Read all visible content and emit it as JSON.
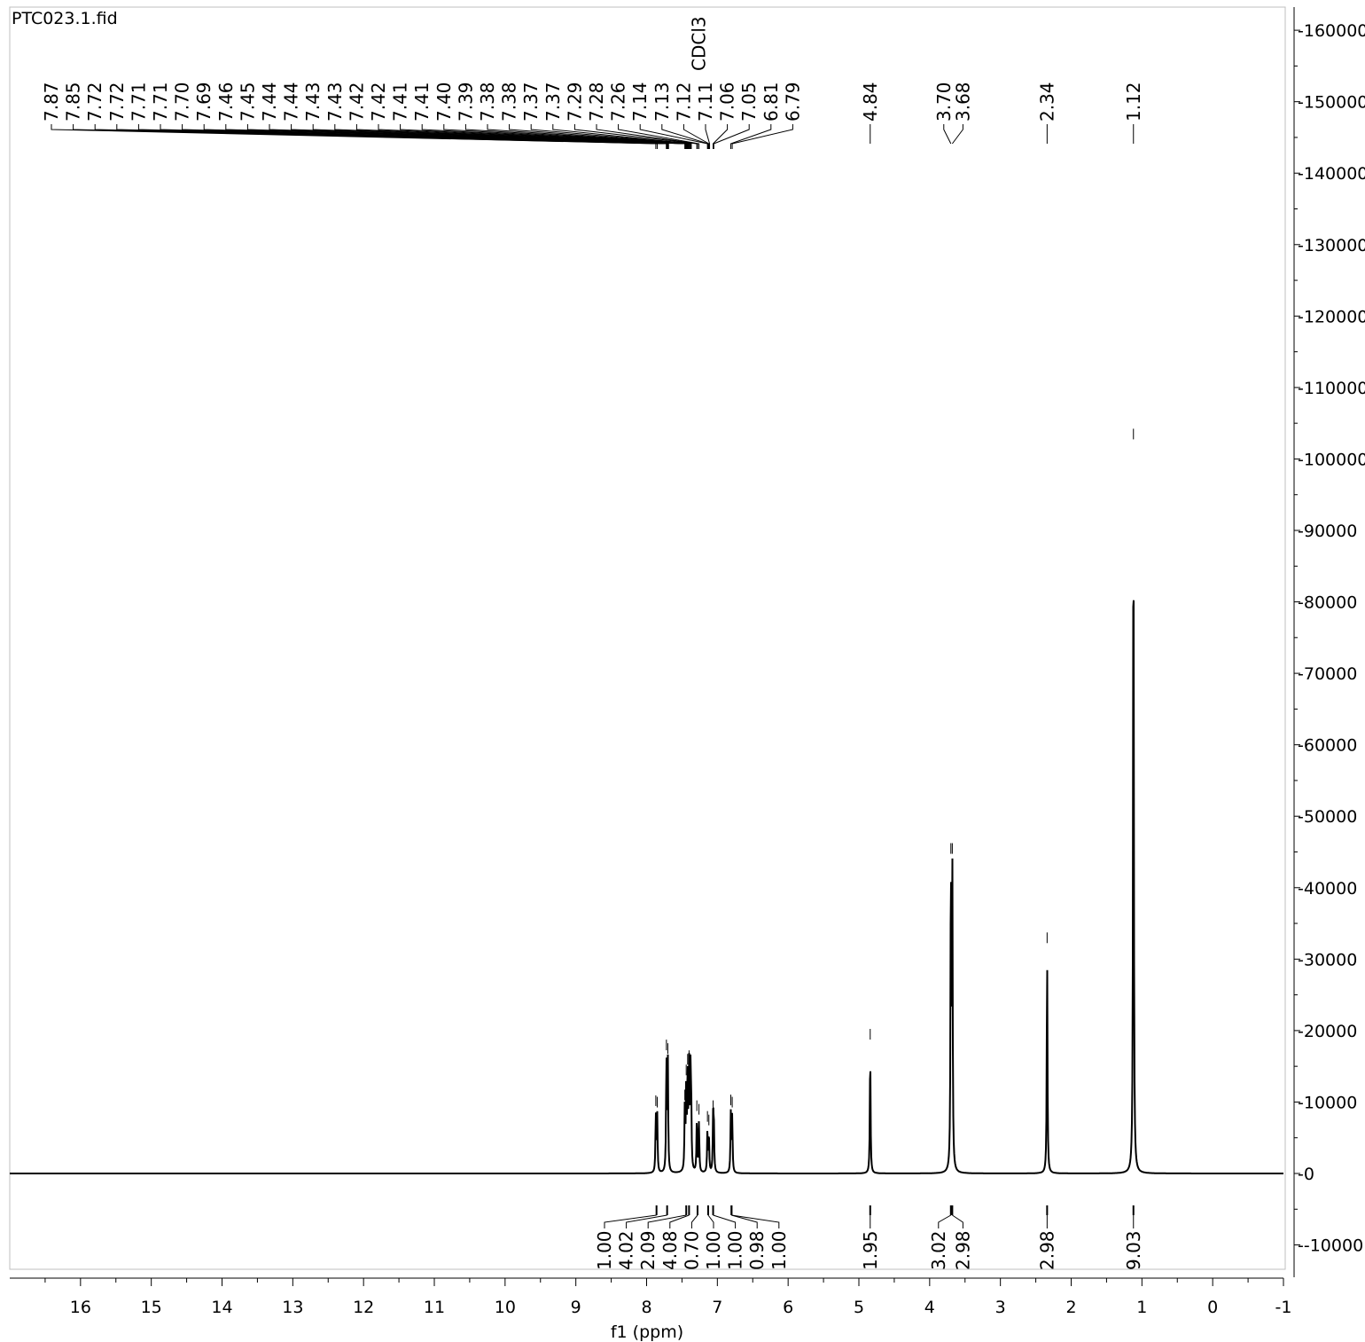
{
  "chart_data": {
    "type": "line",
    "title": "PTC023.1.fid",
    "xlabel": "f1 (ppm)",
    "ylabel": "",
    "xlim": [
      17.0,
      -1.0
    ],
    "ylim": [
      -15000,
      162000
    ],
    "x_ticks": [
      "16",
      "15",
      "14",
      "13",
      "12",
      "11",
      "10",
      "9",
      "8",
      "7",
      "6",
      "5",
      "4",
      "3",
      "2",
      "1",
      "0",
      "-1"
    ],
    "y_ticks": [
      "160000",
      "150000",
      "140000",
      "130000",
      "120000",
      "110000",
      "100000",
      "90000",
      "80000",
      "70000",
      "60000",
      "50000",
      "40000",
      "30000",
      "20000",
      "10000",
      "0",
      "-10000"
    ],
    "solvent_label": "CDCl3",
    "peak_labels": [
      "7.87",
      "7.85",
      "7.72",
      "7.72",
      "7.71",
      "7.71",
      "7.70",
      "7.69",
      "7.46",
      "7.45",
      "7.44",
      "7.44",
      "7.43",
      "7.43",
      "7.42",
      "7.42",
      "7.41",
      "7.41",
      "7.40",
      "7.39",
      "7.38",
      "7.38",
      "7.37",
      "7.37",
      "7.29",
      "7.28",
      "7.26",
      "7.14",
      "7.13",
      "7.12",
      "7.11",
      "7.06",
      "7.05",
      "6.81",
      "6.79",
      "4.84",
      "3.70",
      "3.68",
      "2.34",
      "1.12"
    ],
    "peaks": [
      {
        "ppm": 7.87,
        "height": 8200
      },
      {
        "ppm": 7.85,
        "height": 8000
      },
      {
        "ppm": 7.72,
        "height": 16000
      },
      {
        "ppm": 7.7,
        "height": 15500
      },
      {
        "ppm": 7.46,
        "height": 9000
      },
      {
        "ppm": 7.44,
        "height": 12500
      },
      {
        "ppm": 7.42,
        "height": 14000
      },
      {
        "ppm": 7.4,
        "height": 14500
      },
      {
        "ppm": 7.38,
        "height": 12500
      },
      {
        "ppm": 7.37,
        "height": 9000
      },
      {
        "ppm": 7.29,
        "height": 7500
      },
      {
        "ppm": 7.26,
        "height": 7000
      },
      {
        "ppm": 7.14,
        "height": 6000
      },
      {
        "ppm": 7.12,
        "height": 5500
      },
      {
        "ppm": 7.06,
        "height": 7500
      },
      {
        "ppm": 7.05,
        "height": 6500
      },
      {
        "ppm": 6.81,
        "height": 8300
      },
      {
        "ppm": 6.79,
        "height": 8000
      },
      {
        "ppm": 4.84,
        "height": 17500
      },
      {
        "ppm": 3.7,
        "height": 43500
      },
      {
        "ppm": 3.68,
        "height": 43500
      },
      {
        "ppm": 2.34,
        "height": 31000
      },
      {
        "ppm": 1.12,
        "height": 101500
      }
    ],
    "integrals": [
      {
        "ppm": 7.86,
        "value": "1.00"
      },
      {
        "ppm": 7.71,
        "value": "4.02"
      },
      {
        "ppm": 7.44,
        "value": "2.09"
      },
      {
        "ppm": 7.4,
        "value": "4.08"
      },
      {
        "ppm": 7.28,
        "value": "0.70"
      },
      {
        "ppm": 7.13,
        "value": "1.00"
      },
      {
        "ppm": 7.06,
        "value": "1.00"
      },
      {
        "ppm": 6.8,
        "value": "0.98"
      },
      {
        "ppm": 6.8,
        "value": "1.00"
      },
      {
        "ppm": 4.84,
        "value": "1.95"
      },
      {
        "ppm": 3.7,
        "value": "3.02"
      },
      {
        "ppm": 3.68,
        "value": "2.98"
      },
      {
        "ppm": 2.34,
        "value": "2.98"
      },
      {
        "ppm": 1.12,
        "value": "9.03"
      }
    ],
    "grid": false,
    "legend": "none"
  }
}
